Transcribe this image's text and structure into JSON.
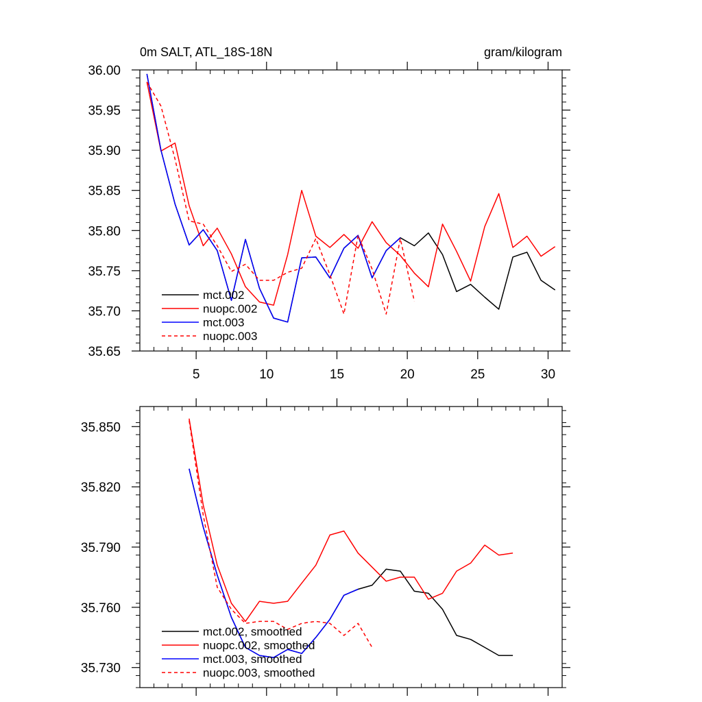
{
  "chart_data": [
    {
      "type": "line",
      "title": "0m SALT, ATL_18S-18N",
      "units": "gram/kilogram",
      "xlim": [
        1,
        31
      ],
      "ylim": [
        35.65,
        36.0
      ],
      "xticks": [
        5,
        10,
        15,
        20,
        25,
        30
      ],
      "xtick_labels": [
        "5",
        "10",
        "15",
        "20",
        "25",
        "30"
      ],
      "yticks": [
        35.65,
        35.7,
        35.75,
        35.8,
        35.85,
        35.9,
        35.95,
        36.0
      ],
      "ytick_labels": [
        "35.65",
        "35.70",
        "35.75",
        "35.80",
        "35.85",
        "35.90",
        "35.95",
        "36.00"
      ],
      "legend_position": "bottom-left",
      "series": [
        {
          "name": "mct.002",
          "color": "#000000",
          "dash": "solid",
          "x": [
            1.5,
            2.5,
            3.5,
            4.5,
            5.5,
            6.5,
            7.5,
            8.5,
            9.5,
            10.5,
            11.5,
            12.5,
            13.5,
            14.5,
            15.5,
            16.5,
            17.5,
            18.5,
            19.5,
            20.5,
            21.5,
            22.5,
            23.5,
            24.5,
            25.5,
            26.5,
            27.5,
            28.5,
            29.5,
            30.5
          ],
          "y": [
            35.995,
            35.9,
            35.833,
            35.782,
            35.801,
            35.775,
            35.713,
            35.789,
            35.728,
            35.691,
            35.686,
            35.766,
            35.767,
            35.741,
            35.778,
            35.794,
            35.741,
            35.775,
            35.791,
            35.781,
            35.797,
            35.77,
            35.724,
            35.733,
            35.717,
            35.702,
            35.767,
            35.773,
            35.738,
            35.726
          ]
        },
        {
          "name": "nuopc.002",
          "color": "#ff0000",
          "dash": "solid",
          "x": [
            1.5,
            2.5,
            3.5,
            4.5,
            5.5,
            6.5,
            7.5,
            8.5,
            9.5,
            10.5,
            11.5,
            12.5,
            13.5,
            14.5,
            15.5,
            16.5,
            17.5,
            18.5,
            19.5,
            20.5,
            21.5,
            22.5,
            23.5,
            24.5,
            25.5,
            26.5,
            27.5,
            28.5,
            29.5,
            30.5
          ],
          "y": [
            35.985,
            35.899,
            35.909,
            35.831,
            35.781,
            35.803,
            35.771,
            35.73,
            35.711,
            35.707,
            35.77,
            35.85,
            35.793,
            35.779,
            35.795,
            35.778,
            35.811,
            35.785,
            35.769,
            35.747,
            35.73,
            35.808,
            35.774,
            35.737,
            35.805,
            35.846,
            35.779,
            35.793,
            35.768,
            35.78
          ]
        },
        {
          "name": "mct.003",
          "color": "#0000ff",
          "dash": "solid",
          "x": [
            1.5,
            2.5,
            3.5,
            4.5,
            5.5,
            6.5,
            7.5,
            8.5,
            9.5,
            10.5,
            11.5,
            12.5,
            13.5,
            14.5,
            15.5,
            16.5,
            17.5,
            18.5,
            19.5
          ],
          "y": [
            35.995,
            35.9,
            35.833,
            35.782,
            35.801,
            35.775,
            35.713,
            35.789,
            35.728,
            35.691,
            35.686,
            35.766,
            35.767,
            35.741,
            35.778,
            35.794,
            35.741,
            35.775,
            35.791
          ]
        },
        {
          "name": "nuopc.003",
          "color": "#ff0000",
          "dash": "dashed",
          "x": [
            1.5,
            2.5,
            3.5,
            4.5,
            5.5,
            6.5,
            7.5,
            8.5,
            9.5,
            10.5,
            11.5,
            12.5,
            13.5,
            14.5,
            15.5,
            16.5,
            17.5,
            18.5,
            19.5,
            20.5
          ],
          "y": [
            35.985,
            35.955,
            35.889,
            35.812,
            35.808,
            35.781,
            35.749,
            35.758,
            35.738,
            35.738,
            35.748,
            35.753,
            35.79,
            35.745,
            35.696,
            35.794,
            35.752,
            35.696,
            35.79,
            35.712
          ]
        }
      ]
    },
    {
      "type": "line",
      "xlim": [
        1,
        31
      ],
      "ylim": [
        35.72,
        35.86
      ],
      "xticks": [
        5,
        10,
        15,
        20,
        25,
        30
      ],
      "yticks": [
        35.73,
        35.76,
        35.79,
        35.82,
        35.85
      ],
      "ytick_labels": [
        "35.730",
        "35.760",
        "35.790",
        "35.820",
        "35.850"
      ],
      "legend_position": "bottom-left",
      "series": [
        {
          "name": "mct.002, smoothed",
          "color": "#000000",
          "dash": "solid",
          "x": [
            4.5,
            5.5,
            6.5,
            7.5,
            8.5,
            9.5,
            10.5,
            11.5,
            12.5,
            13.5,
            14.5,
            15.5,
            16.5,
            17.5,
            18.5,
            19.5,
            20.5,
            21.5,
            22.5,
            23.5,
            24.5,
            25.5,
            26.5,
            27.5
          ],
          "y": [
            35.829,
            35.8,
            35.776,
            35.755,
            35.74,
            35.736,
            35.735,
            35.739,
            35.737,
            35.745,
            35.754,
            35.766,
            35.769,
            35.771,
            35.779,
            35.778,
            35.768,
            35.767,
            35.759,
            35.746,
            35.744,
            35.74,
            35.736,
            35.736
          ]
        },
        {
          "name": "nuopc.002, smoothed",
          "color": "#ff0000",
          "dash": "solid",
          "x": [
            4.5,
            5.5,
            6.5,
            7.5,
            8.5,
            9.5,
            10.5,
            11.5,
            12.5,
            13.5,
            14.5,
            15.5,
            16.5,
            17.5,
            18.5,
            19.5,
            20.5,
            21.5,
            22.5,
            23.5,
            24.5,
            25.5,
            26.5,
            27.5
          ],
          "y": [
            35.854,
            35.811,
            35.781,
            35.762,
            35.753,
            35.763,
            35.762,
            35.763,
            35.772,
            35.781,
            35.796,
            35.798,
            35.787,
            35.78,
            35.773,
            35.775,
            35.775,
            35.764,
            35.767,
            35.778,
            35.782,
            35.791,
            35.786,
            35.787
          ]
        },
        {
          "name": "mct.003, smoothed",
          "color": "#0000ff",
          "dash": "solid",
          "x": [
            4.5,
            5.5,
            6.5,
            7.5,
            8.5,
            9.5,
            10.5,
            11.5,
            12.5,
            13.5,
            14.5,
            15.5,
            16.5
          ],
          "y": [
            35.829,
            35.8,
            35.776,
            35.755,
            35.74,
            35.736,
            35.735,
            35.739,
            35.737,
            35.745,
            35.754,
            35.766,
            35.769
          ]
        },
        {
          "name": "nuopc.003, smoothed",
          "color": "#ff0000",
          "dash": "dashed",
          "x": [
            4.5,
            5.5,
            6.5,
            7.5,
            8.5,
            9.5,
            10.5,
            11.5,
            12.5,
            13.5,
            14.5,
            15.5,
            16.5,
            17.5
          ],
          "y": [
            35.853,
            35.806,
            35.77,
            35.759,
            35.752,
            35.753,
            35.753,
            35.749,
            35.752,
            35.753,
            35.752,
            35.746,
            35.752,
            35.74
          ]
        }
      ]
    }
  ]
}
